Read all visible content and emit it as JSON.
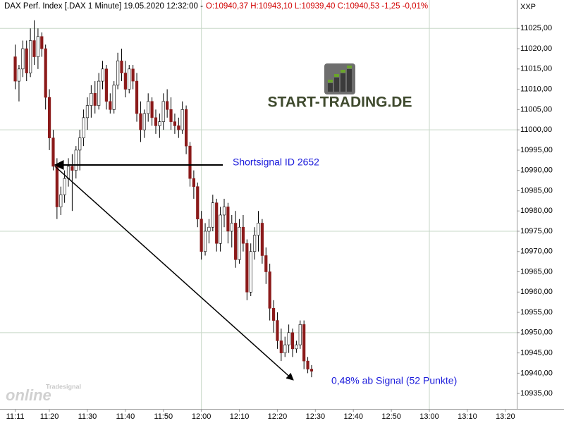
{
  "chart_data": {
    "type": "candlestick",
    "header": {
      "instrument": "DAX Perf. Index [.DAX  1 Minute] 19.05.2020 12:32:00 -",
      "ohlc": "O:10940,37 H:10943,10 L:10939,40 C:10940,53 -1,25 -0,01%"
    },
    "axis_code": "XXP",
    "x": [
      "11:11",
      "11:12",
      "11:13",
      "11:14",
      "11:15",
      "11:16",
      "11:17",
      "11:18",
      "11:19",
      "11:20",
      "11:21",
      "11:22",
      "11:23",
      "11:24",
      "11:25",
      "11:26",
      "11:27",
      "11:28",
      "11:29",
      "11:30",
      "11:31",
      "11:32",
      "11:33",
      "11:34",
      "11:35",
      "11:36",
      "11:37",
      "11:38",
      "11:39",
      "11:40",
      "11:41",
      "11:42",
      "11:43",
      "11:44",
      "11:45",
      "11:46",
      "11:47",
      "11:48",
      "11:49",
      "11:50",
      "11:51",
      "11:52",
      "11:53",
      "11:54",
      "11:55",
      "11:56",
      "11:57",
      "11:58",
      "11:59",
      "12:00",
      "12:01",
      "12:02",
      "12:03",
      "12:04",
      "12:05",
      "12:06",
      "12:07",
      "12:08",
      "12:09",
      "12:10",
      "12:11",
      "12:12",
      "12:13",
      "12:14",
      "12:15",
      "12:16",
      "12:17",
      "12:18",
      "12:19",
      "12:20",
      "12:21",
      "12:22",
      "12:23",
      "12:24",
      "12:25",
      "12:26",
      "12:27",
      "12:28",
      "12:29"
    ],
    "open": [
      11018,
      11012,
      11015,
      11020,
      11014,
      11022,
      11018,
      11023,
      11020,
      11008,
      10998,
      10991,
      10981,
      10984,
      10988,
      10991,
      10990,
      10995,
      10998,
      11003,
      11006,
      11009,
      11006,
      11012,
      11015,
      11007,
      11005,
      11011,
      11017,
      11014,
      11010,
      11015,
      11012,
      11004,
      11000,
      11004,
      11007,
      11003,
      11001,
      11002,
      11007,
      11005,
      11002,
      11001,
      11000,
      11005,
      10996,
      10988,
      10986,
      10978,
      10970,
      10975,
      10976,
      10982,
      10972,
      10979,
      10981,
      10975,
      10977,
      10968,
      10976,
      10972,
      10960,
      10970,
      10974,
      10977,
      10969,
      10965,
      10956,
      10953,
      10948,
      10945,
      10947,
      10950,
      10946,
      10947,
      10952,
      10943,
      10941
    ],
    "high": [
      11021,
      11016,
      11022,
      11022,
      11025,
      11027,
      11025,
      11024,
      11021,
      11010,
      11000,
      10993,
      10986,
      10990,
      10993,
      10994,
      10996,
      11000,
      11005,
      11008,
      11011,
      11012,
      11014,
      11017,
      11016,
      11009,
      11012,
      11019,
      11020,
      11017,
      11016,
      11016,
      11014,
      11007,
      11005,
      11009,
      11008,
      11005,
      11004,
      11009,
      11010,
      11008,
      11004,
      11003,
      11007,
      11006,
      10997,
      10990,
      10987,
      10980,
      10977,
      10978,
      10984,
      10983,
      10981,
      10983,
      10982,
      10979,
      10980,
      10978,
      10979,
      10973,
      10972,
      10976,
      10980,
      10978,
      10971,
      10967,
      10958,
      10955,
      10951,
      10949,
      10952,
      10951,
      10948,
      10953,
      10953,
      10944,
      10942
    ],
    "low": [
      11010,
      11007,
      11013,
      11012,
      11013,
      11016,
      11015,
      11018,
      11005,
      10995,
      10990,
      10978,
      10979,
      10982,
      10986,
      10980,
      10988,
      10990,
      10996,
      11000,
      11003,
      11004,
      11005,
      11010,
      11005,
      11004,
      11004,
      11010,
      11012,
      11008,
      11009,
      11010,
      11002,
      10997,
      10998,
      11002,
      11001,
      10999,
      10998,
      11000,
      11003,
      11000,
      10999,
      10998,
      10999,
      10994,
      10986,
      10983,
      10976,
      10968,
      10969,
      10972,
      10975,
      10970,
      10970,
      10976,
      10972,
      10971,
      10966,
      10967,
      10970,
      10958,
      10959,
      10968,
      10970,
      10967,
      10962,
      10953,
      10950,
      10946,
      10943,
      10944,
      10945,
      10944,
      10945,
      10946,
      10941,
      10940,
      10939
    ],
    "close": [
      11012,
      11015,
      11020,
      11014,
      11022,
      11018,
      11023,
      11020,
      11008,
      10998,
      10991,
      10981,
      10984,
      10988,
      10991,
      10990,
      10995,
      10998,
      11003,
      11006,
      11009,
      11006,
      11012,
      11015,
      11007,
      11005,
      11011,
      11017,
      11014,
      11010,
      11015,
      11012,
      11004,
      11000,
      11004,
      11007,
      11003,
      11001,
      11002,
      11007,
      11005,
      11002,
      11001,
      11000,
      11005,
      10996,
      10988,
      10986,
      10978,
      10970,
      10975,
      10976,
      10982,
      10972,
      10979,
      10981,
      10975,
      10977,
      10968,
      10976,
      10972,
      10960,
      10970,
      10974,
      10977,
      10969,
      10965,
      10956,
      10953,
      10948,
      10945,
      10947,
      10950,
      10946,
      10947,
      10952,
      10943,
      10941,
      10940.5
    ],
    "up_color": "#ffffff",
    "down_color": "#8b1a1a",
    "xlim": [
      "11:07",
      "13:23"
    ],
    "xticks": [
      "11:11",
      "11:20",
      "11:30",
      "11:40",
      "11:50",
      "12:00",
      "12:10",
      "12:20",
      "12:30",
      "12:40",
      "12:50",
      "13:00",
      "13:10",
      "13:20"
    ],
    "ylim": [
      10931.2,
      11032
    ],
    "yticks": [
      {
        "value": 10935,
        "label": "10935,00"
      },
      {
        "value": 10940,
        "label": "10940,00"
      },
      {
        "value": 10945,
        "label": "10945,00"
      },
      {
        "value": 10950,
        "label": "10950,00"
      },
      {
        "value": 10955,
        "label": "10955,00"
      },
      {
        "value": 10960,
        "label": "10960,00"
      },
      {
        "value": 10965,
        "label": "10965,00"
      },
      {
        "value": 10970,
        "label": "10970,00"
      },
      {
        "value": 10975,
        "label": "10975,00"
      },
      {
        "value": 10980,
        "label": "10980,00"
      },
      {
        "value": 10985,
        "label": "10985,00"
      },
      {
        "value": 10990,
        "label": "10990,00"
      },
      {
        "value": 10995,
        "label": "10995,00"
      },
      {
        "value": 11000,
        "label": "11000,00"
      },
      {
        "value": 11005,
        "label": "11005,00"
      },
      {
        "value": 11010,
        "label": "11010,00"
      },
      {
        "value": 11015,
        "label": "11015,00"
      },
      {
        "value": 11020,
        "label": "11020,00"
      },
      {
        "value": 11025,
        "label": "11025,00"
      }
    ],
    "annotations": {
      "signal": "Shortsignal ID 2652",
      "result": "0,48% ab Signal (52 Punkte)"
    },
    "logo": "START-TRADING.DE",
    "watermark": {
      "brand": "Tradesignal",
      "product": "online"
    }
  }
}
